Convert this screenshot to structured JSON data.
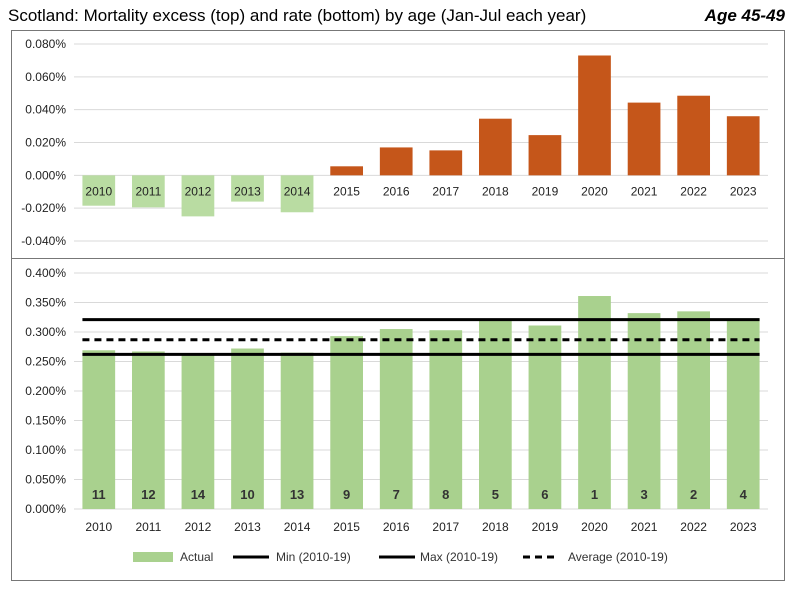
{
  "header": {
    "title": "Scotland: Mortality excess (top) and rate (bottom) by age (Jan-Jul each year)",
    "subtitle": "Age 45-49"
  },
  "colors": {
    "negative": "#b9dca2",
    "positive": "#c5561a",
    "actual": "#a9d18e",
    "line": "#000000"
  },
  "chart_data": [
    {
      "type": "bar",
      "name": "excess",
      "categories": [
        "2010",
        "2011",
        "2012",
        "2013",
        "2014",
        "2015",
        "2016",
        "2017",
        "2018",
        "2019",
        "2020",
        "2021",
        "2022",
        "2023"
      ],
      "values": [
        -0.0185,
        -0.0195,
        -0.025,
        -0.016,
        -0.0225,
        0.0055,
        0.017,
        0.0152,
        0.0345,
        0.0245,
        0.073,
        0.0443,
        0.0485,
        0.036
      ],
      "ylim": [
        -0.04,
        0.08
      ],
      "yticks": [
        "-0.040%",
        "-0.020%",
        "0.000%",
        "0.020%",
        "0.040%",
        "0.060%",
        "0.080%"
      ],
      "grid": true
    },
    {
      "type": "bar",
      "name": "rate",
      "categories": [
        "2010",
        "2011",
        "2012",
        "2013",
        "2014",
        "2015",
        "2016",
        "2017",
        "2018",
        "2019",
        "2020",
        "2021",
        "2022",
        "2023"
      ],
      "series": [
        {
          "name": "Actual",
          "values": [
            0.269,
            0.267,
            0.262,
            0.272,
            0.265,
            0.293,
            0.305,
            0.303,
            0.321,
            0.311,
            0.361,
            0.332,
            0.335,
            0.323
          ]
        }
      ],
      "ranks": [
        "11",
        "12",
        "14",
        "10",
        "13",
        "9",
        "7",
        "8",
        "5",
        "6",
        "1",
        "3",
        "2",
        "4"
      ],
      "lines": [
        {
          "name": "Min (2010-19)",
          "value": 0.262,
          "style": "solid"
        },
        {
          "name": "Max (2010-19)",
          "value": 0.321,
          "style": "solid"
        },
        {
          "name": "Average (2010-19)",
          "value": 0.2868,
          "style": "dashed"
        }
      ],
      "ylim": [
        0,
        0.4
      ],
      "yticks": [
        "0.000%",
        "0.050%",
        "0.100%",
        "0.150%",
        "0.200%",
        "0.250%",
        "0.300%",
        "0.350%",
        "0.400%"
      ],
      "grid": true,
      "legend_position": "bottom"
    }
  ]
}
